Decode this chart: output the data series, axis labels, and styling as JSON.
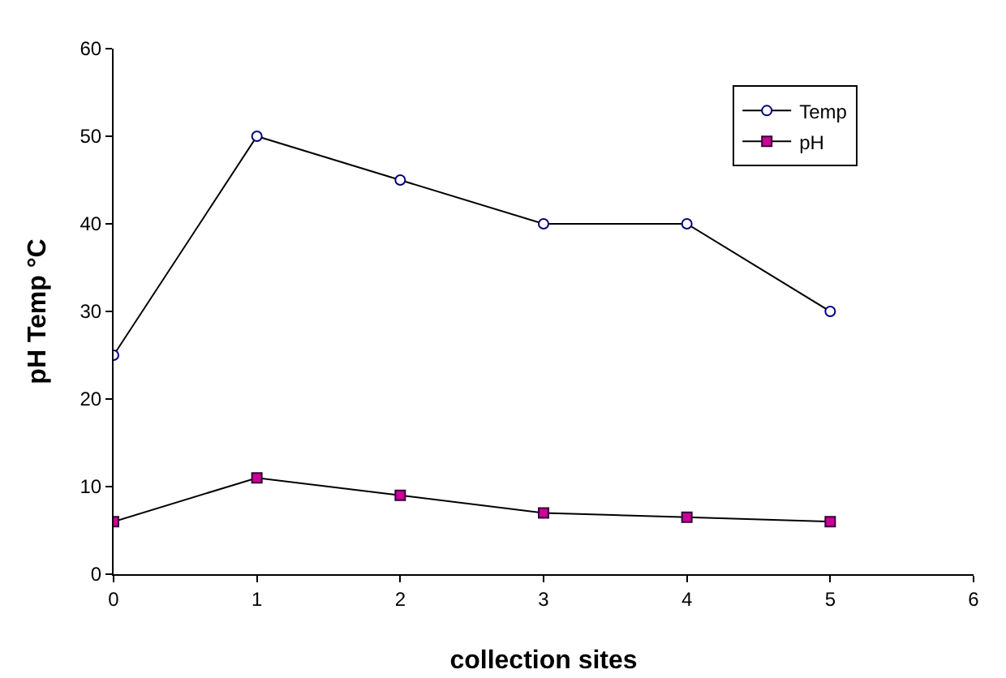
{
  "chart_data": {
    "type": "line",
    "xlabel": "collection sites",
    "ylabel": "pH Temp °C",
    "x": [
      0,
      1,
      2,
      3,
      4,
      5
    ],
    "series": [
      {
        "name": "Temp",
        "color": "#000080",
        "marker": "circle",
        "values": [
          25,
          50,
          45,
          40,
          40,
          30
        ]
      },
      {
        "name": "pH",
        "color": "#cc0099",
        "marker": "square",
        "values": [
          6,
          11,
          9,
          7,
          6.5,
          6
        ]
      }
    ],
    "xlim": [
      0,
      6
    ],
    "xticks": [
      0,
      1,
      2,
      3,
      4,
      5,
      6
    ],
    "ylim": [
      0,
      60
    ],
    "yticks": [
      0,
      10,
      20,
      30,
      40,
      50,
      60
    ],
    "grid": false,
    "legend": "top right",
    "line_style": "solid"
  }
}
